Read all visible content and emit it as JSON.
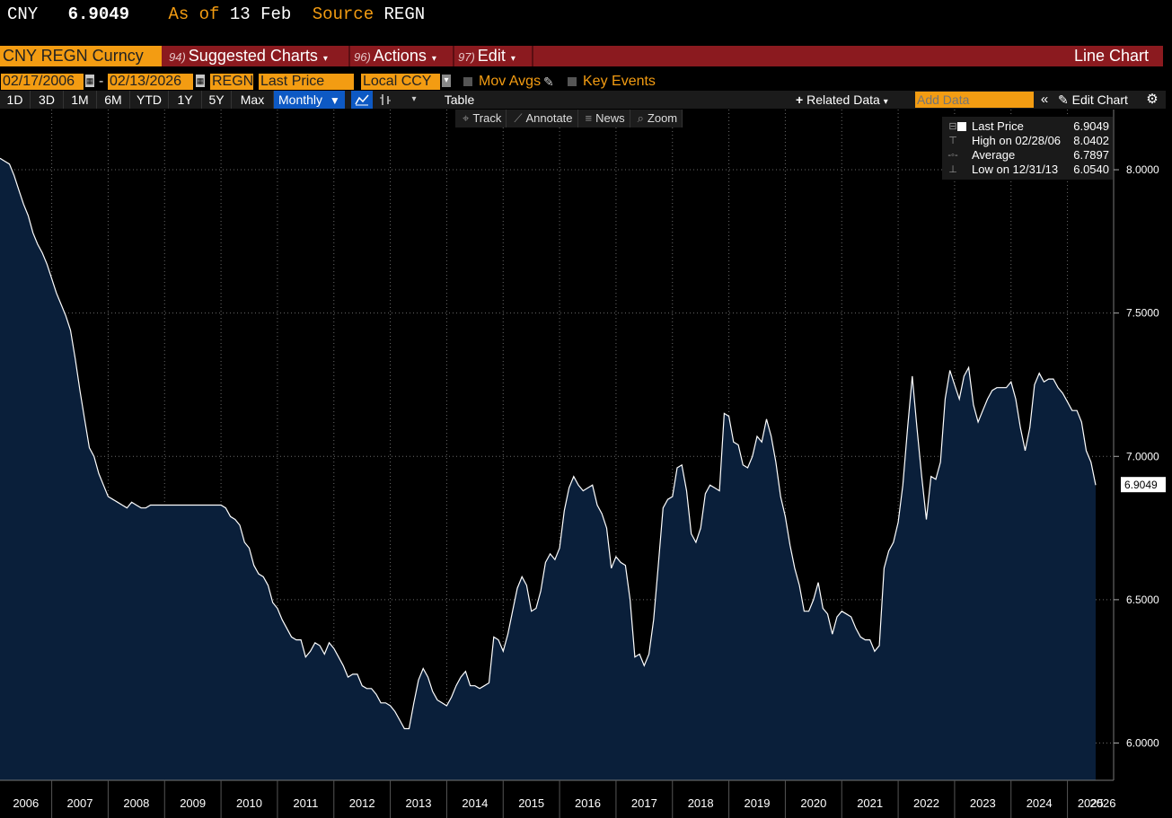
{
  "header": {
    "ticker": "CNY",
    "price": "6.9049",
    "as_of_label": "As of",
    "as_of_value": "13 Feb",
    "source_label": "Source",
    "source_value": "REGN"
  },
  "menubar": {
    "security": "CNY REGN Curncy",
    "suggested": {
      "num": "94)",
      "label": "Suggested Charts"
    },
    "actions": {
      "num": "96)",
      "label": "Actions"
    },
    "edit": {
      "num": "97)",
      "label": "Edit"
    },
    "chart_type": "Line Chart"
  },
  "params": {
    "start_date": "02/17/2006",
    "separator": "-",
    "end_date": "02/13/2026",
    "source": "REGN",
    "field": "Last Price",
    "currency": "Local CCY",
    "mov_avgs": "Mov Avgs",
    "key_events": "Key Events"
  },
  "toolbar": {
    "ranges": [
      "1D",
      "3D",
      "1M",
      "6M",
      "YTD",
      "1Y",
      "5Y",
      "Max"
    ],
    "frequency": "Monthly",
    "table": "Table",
    "related_data": "Related Data",
    "add_data_placeholder": "Add Data",
    "edit_chart": "Edit Chart"
  },
  "subtools": {
    "track": "Track",
    "annotate": "Annotate",
    "news": "News",
    "zoom": "Zoom"
  },
  "legend": {
    "last_price": {
      "label": "Last Price",
      "value": "6.9049"
    },
    "high": {
      "label": "High on 02/28/06",
      "value": "8.0402"
    },
    "average": {
      "label": "Average",
      "value": "6.7897"
    },
    "low": {
      "label": "Low on 12/31/13",
      "value": "6.0540"
    }
  },
  "colors": {
    "accent_orange": "#f39c12",
    "menubar_red": "#8b1a1f",
    "area_fill": "#0a1f3a",
    "line": "#ffffff",
    "frequency_blue": "#0d59c4"
  },
  "chart_data": {
    "type": "area",
    "series": [
      {
        "name": "Last Price",
        "x_start": "2006-02",
        "frequency": "monthly",
        "values": [
          8.04,
          8.03,
          8.02,
          7.98,
          7.93,
          7.88,
          7.84,
          7.78,
          7.74,
          7.71,
          7.67,
          7.62,
          7.57,
          7.53,
          7.49,
          7.44,
          7.34,
          7.23,
          7.13,
          7.03,
          7.0,
          6.94,
          6.9,
          6.86,
          6.85,
          6.84,
          6.83,
          6.82,
          6.84,
          6.83,
          6.82,
          6.82,
          6.83,
          6.83,
          6.83,
          6.83,
          6.83,
          6.83,
          6.83,
          6.83,
          6.83,
          6.83,
          6.83,
          6.83,
          6.83,
          6.83,
          6.83,
          6.83,
          6.82,
          6.79,
          6.78,
          6.76,
          6.7,
          6.68,
          6.62,
          6.59,
          6.58,
          6.55,
          6.49,
          6.47,
          6.43,
          6.4,
          6.37,
          6.36,
          6.36,
          6.3,
          6.32,
          6.35,
          6.34,
          6.31,
          6.35,
          6.33,
          6.3,
          6.27,
          6.23,
          6.24,
          6.24,
          6.2,
          6.19,
          6.19,
          6.17,
          6.14,
          6.14,
          6.13,
          6.11,
          6.08,
          6.05,
          6.05,
          6.14,
          6.22,
          6.26,
          6.23,
          6.18,
          6.15,
          6.14,
          6.13,
          6.16,
          6.2,
          6.23,
          6.25,
          6.2,
          6.2,
          6.19,
          6.2,
          6.21,
          6.37,
          6.36,
          6.32,
          6.38,
          6.46,
          6.54,
          6.58,
          6.55,
          6.46,
          6.47,
          6.53,
          6.63,
          6.66,
          6.64,
          6.68,
          6.81,
          6.89,
          6.93,
          6.9,
          6.88,
          6.89,
          6.9,
          6.83,
          6.8,
          6.75,
          6.61,
          6.65,
          6.63,
          6.62,
          6.5,
          6.3,
          6.31,
          6.27,
          6.31,
          6.43,
          6.62,
          6.82,
          6.85,
          6.86,
          6.96,
          6.97,
          6.88,
          6.73,
          6.7,
          6.75,
          6.87,
          6.9,
          6.89,
          6.88,
          7.15,
          7.14,
          7.05,
          7.04,
          6.97,
          6.96,
          7.0,
          7.07,
          7.05,
          7.13,
          7.07,
          6.98,
          6.86,
          6.79,
          6.69,
          6.61,
          6.55,
          6.46,
          6.46,
          6.5,
          6.56,
          6.47,
          6.45,
          6.38,
          6.44,
          6.46,
          6.45,
          6.44,
          6.4,
          6.37,
          6.36,
          6.36,
          6.32,
          6.34,
          6.61,
          6.67,
          6.7,
          6.77,
          6.9,
          7.1,
          7.28,
          7.1,
          6.93,
          6.78,
          6.93,
          6.92,
          6.98,
          7.2,
          7.3,
          7.25,
          7.2,
          7.28,
          7.31,
          7.18,
          7.12,
          7.16,
          7.2,
          7.23,
          7.24,
          7.24,
          7.24,
          7.26,
          7.2,
          7.1,
          7.02,
          7.1,
          7.25,
          7.29,
          7.26,
          7.27,
          7.27,
          7.24,
          7.22,
          7.19,
          7.16,
          7.16,
          7.12,
          7.02,
          6.98,
          6.9
        ]
      }
    ],
    "ylim": [
      5.87,
      8.21
    ],
    "y_ticks": [
      "6.0000",
      "6.5000",
      "7.0000",
      "7.5000",
      "8.0000"
    ],
    "x_ticks": [
      "2006",
      "2007",
      "2008",
      "2009",
      "2010",
      "2011",
      "2012",
      "2013",
      "2014",
      "2015",
      "2016",
      "2017",
      "2018",
      "2019",
      "2020",
      "2021",
      "2022",
      "2023",
      "2024",
      "2025",
      "2026"
    ],
    "last_value_label": "6.9049",
    "grid": true,
    "legend_placement": "top-right"
  }
}
